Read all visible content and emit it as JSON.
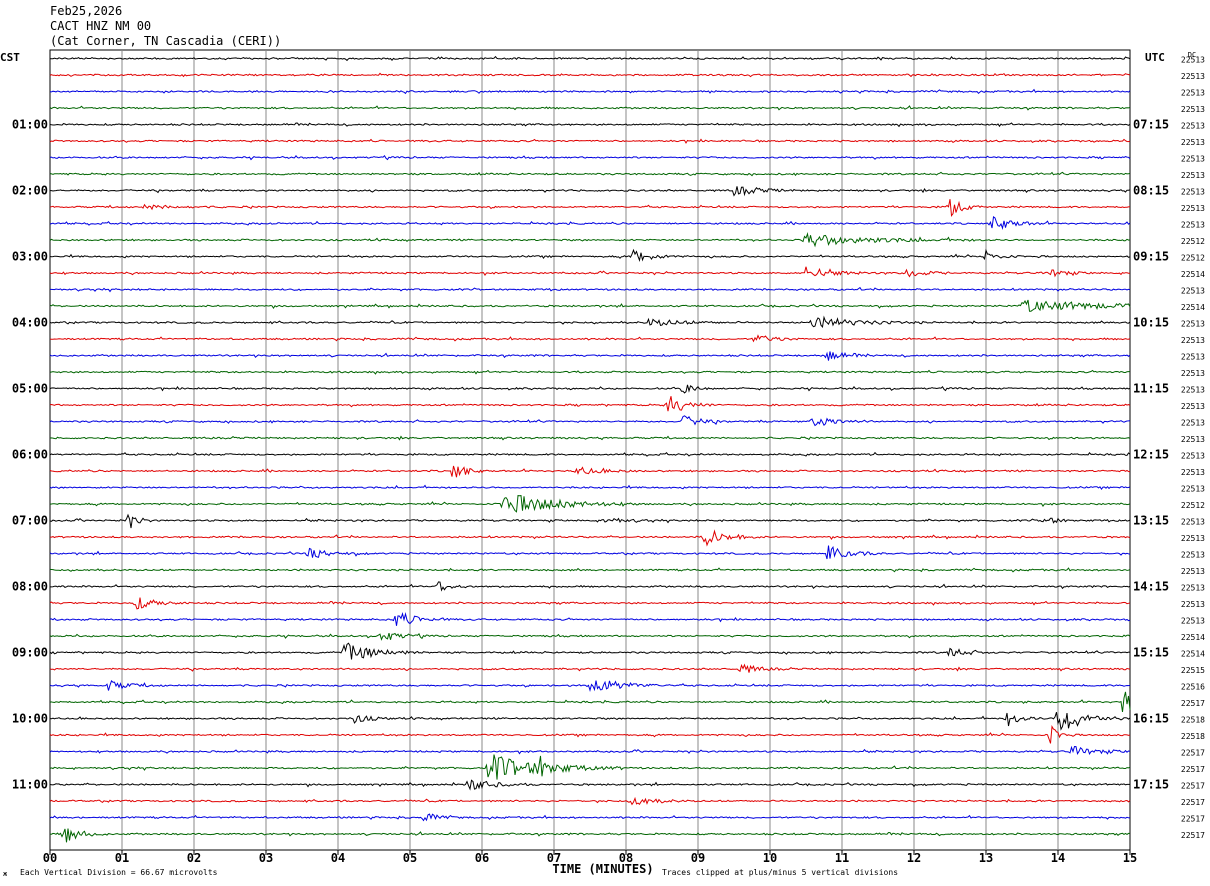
{
  "header": {
    "date": "Feb25,2026",
    "station": "CACT HNZ NM 00",
    "location": "(Cat Corner, TN Cascadia (CERI))"
  },
  "chart_data": {
    "type": "line",
    "subtype": "helicorder",
    "left_tz": "CST",
    "right_tz": "UTC",
    "dc_label": "DC",
    "xlabel": "TIME (MINUTES)",
    "x_ticks": [
      "00",
      "01",
      "02",
      "03",
      "04",
      "05",
      "06",
      "07",
      "08",
      "09",
      "10",
      "11",
      "12",
      "13",
      "14",
      "15"
    ],
    "xlim": [
      0,
      15
    ],
    "row_minutes": 15,
    "rows": 48,
    "trace_colors": [
      "#000000",
      "#e00000",
      "#0000e0",
      "#006400"
    ],
    "left_hour_labels": [
      "01:00",
      "02:00",
      "03:00",
      "04:00",
      "05:00",
      "06:00",
      "07:00",
      "08:00",
      "09:00",
      "10:00",
      "11:00"
    ],
    "right_hour_labels": [
      "07:15",
      "08:15",
      "09:15",
      "10:15",
      "11:15",
      "12:15",
      "13:15",
      "14:15",
      "15:15",
      "16:15",
      "17:15"
    ],
    "hour_label_first_row": 4,
    "dc_offsets": [
      "22513",
      "22513",
      "22513",
      "22513",
      "22513",
      "22513",
      "22513",
      "22513",
      "22513",
      "22513",
      "22513",
      "22512",
      "22512",
      "22514",
      "22513",
      "22514",
      "22513",
      "22513",
      "22513",
      "22513",
      "22513",
      "22513",
      "22513",
      "22513",
      "22513",
      "22513",
      "22513",
      "22512",
      "22513",
      "22513",
      "22513",
      "22513",
      "22513",
      "22513",
      "22513",
      "22514",
      "22514",
      "22515",
      "22516",
      "22517",
      "22518",
      "22518",
      "22517",
      "22517",
      "22517",
      "22517",
      "22517",
      "22517"
    ],
    "footer_left": "Each Vertical Division =   66.67 microvolts",
    "footer_right": "Traces clipped at plus/minus 5 vertical divisions",
    "events": [
      {
        "row": 8,
        "minute": 9.5,
        "amp": 5,
        "dur": 0.6
      },
      {
        "row": 9,
        "minute": 12.5,
        "amp": 10,
        "dur": 0.3
      },
      {
        "row": 9,
        "minute": 1.3,
        "amp": 2,
        "dur": 0.8
      },
      {
        "row": 10,
        "minute": 13.1,
        "amp": 7,
        "dur": 0.5
      },
      {
        "row": 11,
        "minute": 10.5,
        "amp": 6,
        "dur": 1.6
      },
      {
        "row": 12,
        "minute": 8.1,
        "amp": 8,
        "dur": 0.4
      },
      {
        "row": 12,
        "minute": 13.0,
        "amp": 6,
        "dur": 0.3
      },
      {
        "row": 13,
        "minute": 10.5,
        "amp": 6,
        "dur": 0.6
      },
      {
        "row": 13,
        "minute": 11.9,
        "amp": 5,
        "dur": 0.4
      },
      {
        "row": 13,
        "minute": 13.9,
        "amp": 4,
        "dur": 0.4
      },
      {
        "row": 15,
        "minute": 13.5,
        "amp": 6,
        "dur": 2.0
      },
      {
        "row": 16,
        "minute": 10.6,
        "amp": 6,
        "dur": 1.0
      },
      {
        "row": 16,
        "minute": 8.3,
        "amp": 4,
        "dur": 0.8
      },
      {
        "row": 17,
        "minute": 9.8,
        "amp": 5,
        "dur": 0.4
      },
      {
        "row": 18,
        "minute": 10.8,
        "amp": 5,
        "dur": 0.4
      },
      {
        "row": 20,
        "minute": 8.8,
        "amp": 5,
        "dur": 0.3
      },
      {
        "row": 21,
        "minute": 8.6,
        "amp": 11,
        "dur": 0.4
      },
      {
        "row": 22,
        "minute": 8.8,
        "amp": 6,
        "dur": 0.4
      },
      {
        "row": 22,
        "minute": 10.6,
        "amp": 5,
        "dur": 0.6
      },
      {
        "row": 25,
        "minute": 5.6,
        "amp": 9,
        "dur": 0.3
      },
      {
        "row": 25,
        "minute": 7.3,
        "amp": 4,
        "dur": 0.6
      },
      {
        "row": 27,
        "minute": 6.3,
        "amp": 12,
        "dur": 1.2
      },
      {
        "row": 28,
        "minute": 1.1,
        "amp": 8,
        "dur": 0.2
      },
      {
        "row": 28,
        "minute": 7.7,
        "amp": 4,
        "dur": 0.4
      },
      {
        "row": 28,
        "minute": 13.8,
        "amp": 5,
        "dur": 0.3
      },
      {
        "row": 29,
        "minute": 9.1,
        "amp": 9,
        "dur": 0.5
      },
      {
        "row": 30,
        "minute": 3.6,
        "amp": 5,
        "dur": 0.5
      },
      {
        "row": 30,
        "minute": 10.8,
        "amp": 8,
        "dur": 0.5
      },
      {
        "row": 32,
        "minute": 5.4,
        "amp": 5,
        "dur": 0.3
      },
      {
        "row": 33,
        "minute": 1.2,
        "amp": 6,
        "dur": 0.5
      },
      {
        "row": 34,
        "minute": 4.8,
        "amp": 8,
        "dur": 0.5
      },
      {
        "row": 35,
        "minute": 4.6,
        "amp": 7,
        "dur": 0.4
      },
      {
        "row": 36,
        "minute": 4.1,
        "amp": 10,
        "dur": 0.7
      },
      {
        "row": 36,
        "minute": 12.5,
        "amp": 5,
        "dur": 0.4
      },
      {
        "row": 37,
        "minute": 9.6,
        "amp": 5,
        "dur": 0.4
      },
      {
        "row": 38,
        "minute": 0.8,
        "amp": 5,
        "dur": 0.5
      },
      {
        "row": 38,
        "minute": 7.5,
        "amp": 9,
        "dur": 0.7
      },
      {
        "row": 39,
        "minute": 14.9,
        "amp": 12,
        "dur": 0.6
      },
      {
        "row": 40,
        "minute": 13.3,
        "amp": 8,
        "dur": 0.3
      },
      {
        "row": 40,
        "minute": 14.0,
        "amp": 16,
        "dur": 0.6
      },
      {
        "row": 40,
        "minute": 4.2,
        "amp": 5,
        "dur": 0.4
      },
      {
        "row": 41,
        "minute": 13.9,
        "amp": 10,
        "dur": 0.2
      },
      {
        "row": 42,
        "minute": 14.2,
        "amp": 5,
        "dur": 0.6
      },
      {
        "row": 43,
        "minute": 6.1,
        "amp": 14,
        "dur": 1.2
      },
      {
        "row": 43,
        "minute": 6.8,
        "amp": 8,
        "dur": 0.3
      },
      {
        "row": 44,
        "minute": 5.8,
        "amp": 6,
        "dur": 0.6
      },
      {
        "row": 45,
        "minute": 8.1,
        "amp": 5,
        "dur": 0.5
      },
      {
        "row": 46,
        "minute": 5.2,
        "amp": 5,
        "dur": 0.3
      },
      {
        "row": 47,
        "minute": 0.2,
        "amp": 9,
        "dur": 0.4
      }
    ]
  }
}
